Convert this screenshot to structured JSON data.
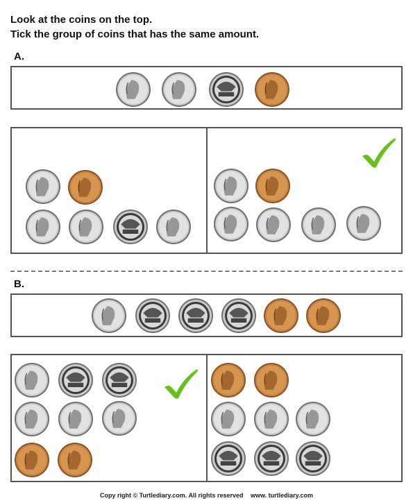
{
  "instructions": {
    "line1": "Look at the coins on the top.",
    "line2": "Tick the group of coins that has the same amount."
  },
  "sections": [
    {
      "label": "A.",
      "target_coins": [
        "nickel",
        "nickel",
        "quarter",
        "penny"
      ],
      "left_group": [
        "nickel",
        "penny",
        "nickel",
        "dime",
        "quarter",
        "dime"
      ],
      "right_group": [
        "nickel",
        "penny",
        "nickel",
        "dime",
        "nickel",
        "dime"
      ],
      "ticked": "right"
    },
    {
      "label": "B.",
      "target_coins": [
        "nickel",
        "quarter",
        "quarter",
        "quarter",
        "penny",
        "penny"
      ],
      "left_group": [
        "nickel",
        "quarter",
        "quarter",
        "dime",
        "dime",
        "nickel",
        "penny",
        "penny"
      ],
      "right_group": [
        "penny",
        "penny",
        "dime",
        "dime",
        "nickel",
        "quarter",
        "quarter",
        "quarter"
      ],
      "ticked": "left"
    }
  ],
  "footer": {
    "copyright": "Copy right © Turtlediary.com. All rights reserved",
    "site": "www. turtlediary.com"
  },
  "colors": {
    "check": "#66c21a",
    "penny": "#c8843e",
    "silver": "#c9c9c9",
    "border": "#555555"
  }
}
